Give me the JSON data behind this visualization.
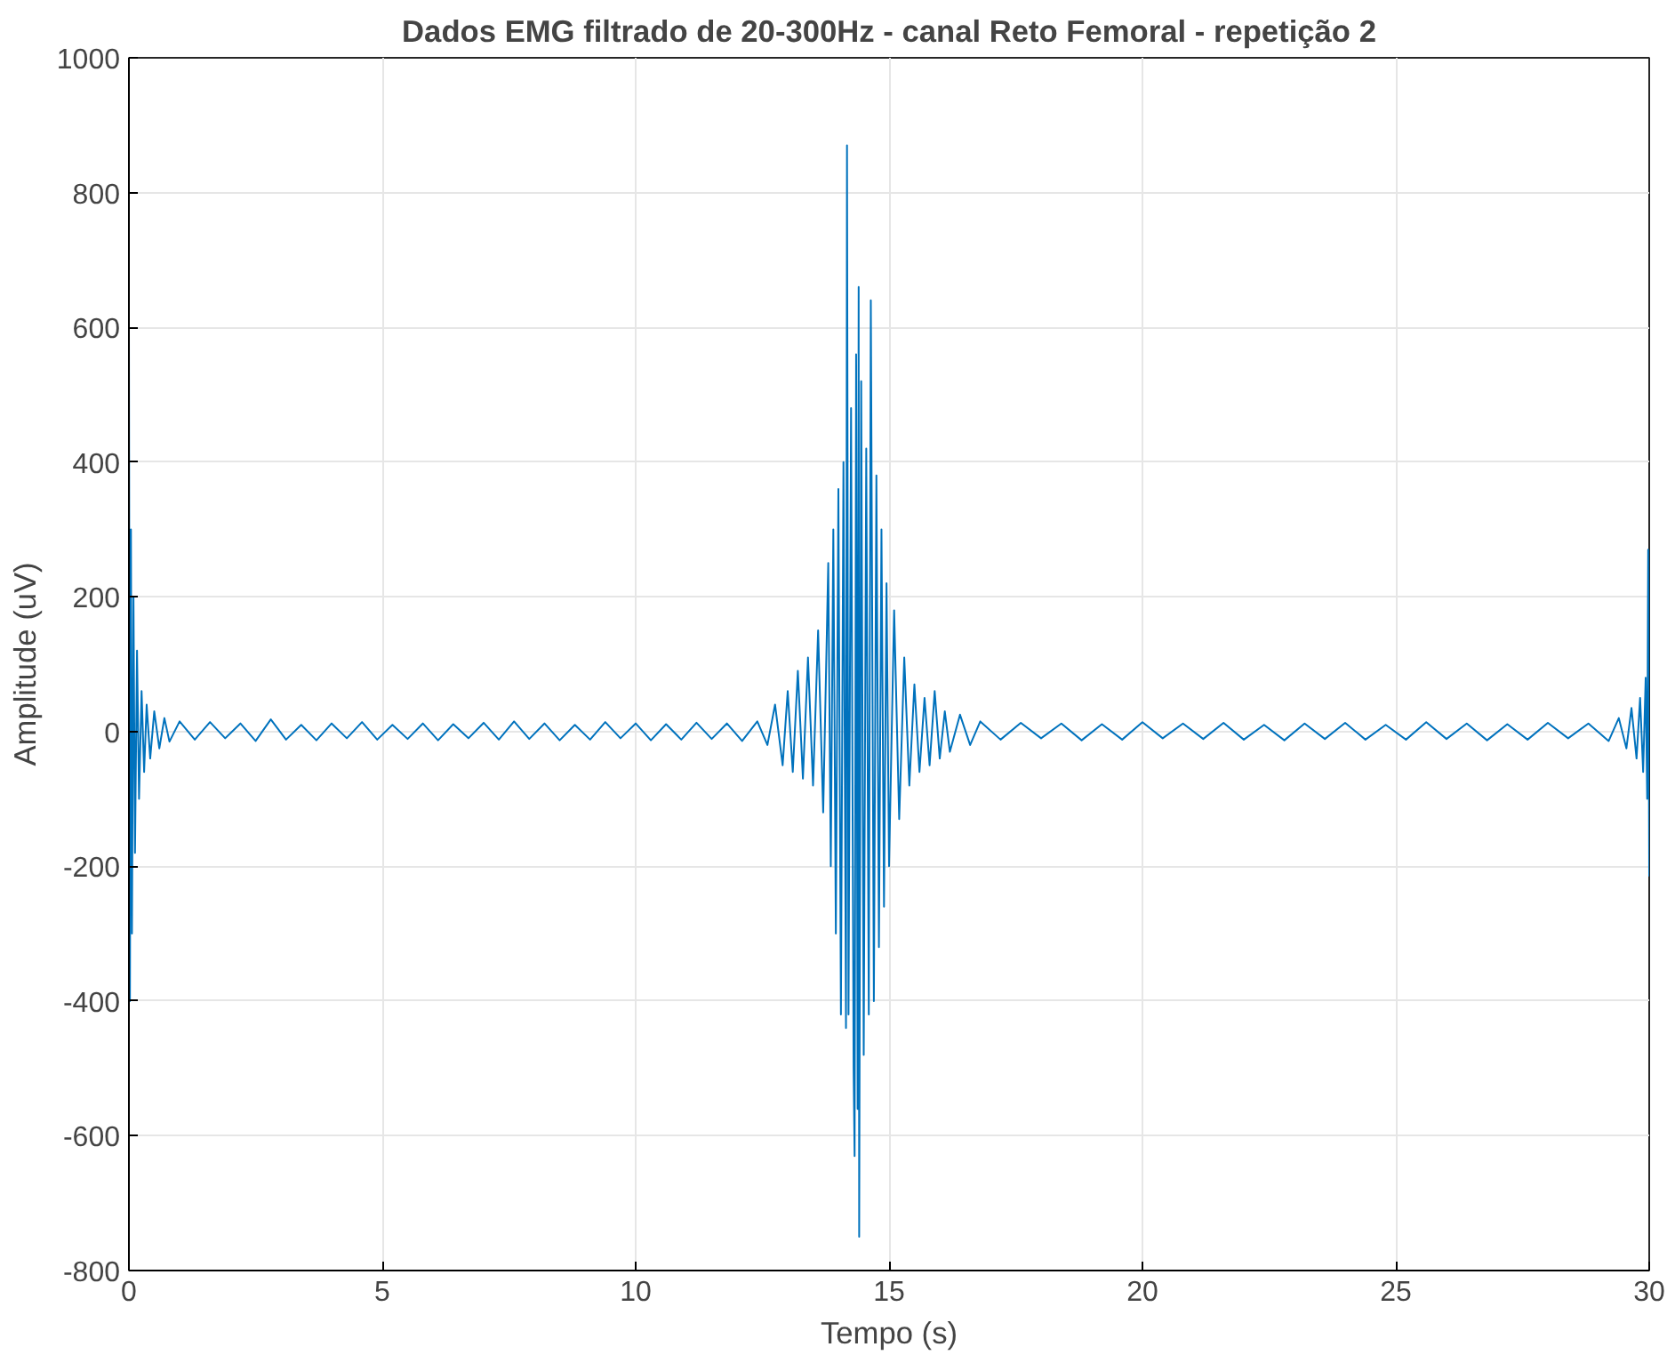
{
  "chart_data": {
    "type": "line",
    "title": "Dados EMG filtrado de 20-300Hz - canal Reto Femoral - repetição 2",
    "xlabel": "Tempo (s)",
    "ylabel": "Amplitude (uV)",
    "xlim": [
      0,
      30
    ],
    "xticks": [
      0,
      5,
      10,
      15,
      20,
      25,
      30
    ],
    "ylim": [
      -800,
      1000
    ],
    "yticks": [
      -800,
      -600,
      -400,
      -200,
      0,
      200,
      400,
      600,
      800,
      1000
    ],
    "grid": true,
    "series": [
      {
        "color": "#0072bd",
        "x": [
          0,
          0.02,
          0.04,
          0.06,
          0.09,
          0.12,
          0.16,
          0.2,
          0.25,
          0.3,
          0.35,
          0.42,
          0.5,
          0.6,
          0.7,
          0.8,
          1.0,
          1.3,
          1.6,
          1.9,
          2.2,
          2.5,
          2.8,
          3.1,
          3.4,
          3.7,
          4.0,
          4.3,
          4.6,
          4.9,
          5.2,
          5.5,
          5.8,
          6.1,
          6.4,
          6.7,
          7.0,
          7.3,
          7.6,
          7.9,
          8.2,
          8.5,
          8.8,
          9.1,
          9.4,
          9.7,
          10.0,
          10.3,
          10.6,
          10.9,
          11.2,
          11.5,
          11.8,
          12.1,
          12.4,
          12.6,
          12.75,
          12.9,
          13.0,
          13.1,
          13.2,
          13.3,
          13.4,
          13.5,
          13.6,
          13.7,
          13.8,
          13.85,
          13.9,
          13.95,
          14.0,
          14.05,
          14.1,
          14.15,
          14.17,
          14.2,
          14.25,
          14.3,
          14.32,
          14.35,
          14.38,
          14.4,
          14.41,
          14.45,
          14.5,
          14.55,
          14.6,
          14.64,
          14.7,
          14.75,
          14.8,
          14.85,
          14.9,
          14.95,
          15.0,
          15.1,
          15.2,
          15.3,
          15.4,
          15.5,
          15.6,
          15.7,
          15.8,
          15.9,
          16.0,
          16.1,
          16.2,
          16.4,
          16.6,
          16.8,
          17.2,
          17.6,
          18.0,
          18.4,
          18.8,
          19.2,
          19.6,
          20.0,
          20.4,
          20.8,
          21.2,
          21.6,
          22.0,
          22.4,
          22.8,
          23.2,
          23.6,
          24.0,
          24.4,
          24.8,
          25.2,
          25.6,
          26.0,
          26.4,
          26.8,
          27.2,
          27.6,
          28.0,
          28.4,
          28.8,
          29.2,
          29.4,
          29.55,
          29.65,
          29.75,
          29.82,
          29.88,
          29.93,
          29.96,
          29.98,
          30.0
        ],
        "values": [
          600,
          -400,
          300,
          -300,
          200,
          -180,
          120,
          -100,
          60,
          -60,
          40,
          -40,
          30,
          -25,
          20,
          -15,
          15,
          -12,
          14,
          -10,
          12,
          -14,
          18,
          -12,
          10,
          -13,
          12,
          -10,
          14,
          -12,
          10,
          -11,
          12,
          -13,
          11,
          -10,
          13,
          -12,
          15,
          -11,
          12,
          -13,
          10,
          -12,
          14,
          -10,
          12,
          -13,
          11,
          -12,
          13,
          -11,
          12,
          -14,
          15,
          -20,
          40,
          -50,
          60,
          -60,
          90,
          -70,
          110,
          -80,
          150,
          -120,
          250,
          -200,
          300,
          -300,
          360,
          -420,
          400,
          -440,
          870,
          -420,
          480,
          -500,
          -630,
          560,
          -560,
          660,
          -750,
          520,
          -480,
          420,
          -420,
          640,
          -400,
          380,
          -320,
          300,
          -260,
          220,
          -200,
          180,
          -130,
          110,
          -80,
          70,
          -60,
          50,
          -50,
          60,
          -40,
          30,
          -30,
          25,
          -20,
          15,
          -12,
          13,
          -10,
          12,
          -13,
          11,
          -12,
          14,
          -10,
          12,
          -11,
          13,
          -12,
          10,
          -13,
          12,
          -11,
          13,
          -12,
          10,
          -12,
          14,
          -11,
          12,
          -13,
          11,
          -12,
          13,
          -10,
          12,
          -14,
          20,
          -25,
          35,
          -40,
          50,
          -60,
          80,
          -100,
          270,
          -215
        ]
      }
    ]
  }
}
